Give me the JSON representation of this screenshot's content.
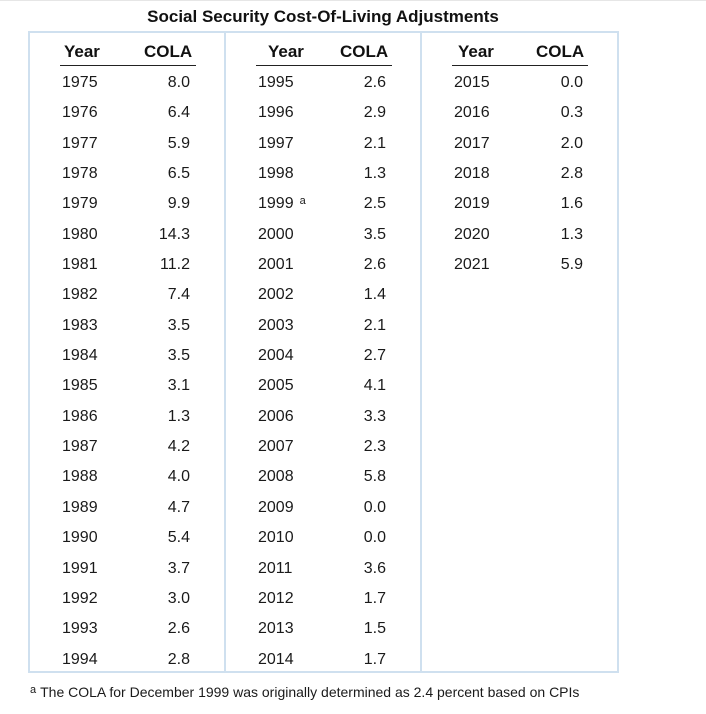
{
  "title": "Social Security Cost-Of-Living Adjustments",
  "headers": {
    "year": "Year",
    "cola": "COLA"
  },
  "columns": [
    {
      "rows": [
        {
          "year": "1975",
          "cola": "8.0"
        },
        {
          "year": "1976",
          "cola": "6.4"
        },
        {
          "year": "1977",
          "cola": "5.9"
        },
        {
          "year": "1978",
          "cola": "6.5"
        },
        {
          "year": "1979",
          "cola": "9.9"
        },
        {
          "year": "1980",
          "cola": "14.3"
        },
        {
          "year": "1981",
          "cola": "11.2"
        },
        {
          "year": "1982",
          "cola": "7.4"
        },
        {
          "year": "1983",
          "cola": "3.5"
        },
        {
          "year": "1984",
          "cola": "3.5"
        },
        {
          "year": "1985",
          "cola": "3.1"
        },
        {
          "year": "1986",
          "cola": "1.3"
        },
        {
          "year": "1987",
          "cola": "4.2"
        },
        {
          "year": "1988",
          "cola": "4.0"
        },
        {
          "year": "1989",
          "cola": "4.7"
        },
        {
          "year": "1990",
          "cola": "5.4"
        },
        {
          "year": "1991",
          "cola": "3.7"
        },
        {
          "year": "1992",
          "cola": "3.0"
        },
        {
          "year": "1993",
          "cola": "2.6"
        },
        {
          "year": "1994",
          "cola": "2.8"
        }
      ]
    },
    {
      "rows": [
        {
          "year": "1995",
          "cola": "2.6"
        },
        {
          "year": "1996",
          "cola": "2.9"
        },
        {
          "year": "1997",
          "cola": "2.1"
        },
        {
          "year": "1998",
          "cola": "1.3"
        },
        {
          "year": "1999",
          "note": "a",
          "cola": "2.5"
        },
        {
          "year": "2000",
          "cola": "3.5"
        },
        {
          "year": "2001",
          "cola": "2.6"
        },
        {
          "year": "2002",
          "cola": "1.4"
        },
        {
          "year": "2003",
          "cola": "2.1"
        },
        {
          "year": "2004",
          "cola": "2.7"
        },
        {
          "year": "2005",
          "cola": "4.1"
        },
        {
          "year": "2006",
          "cola": "3.3"
        },
        {
          "year": "2007",
          "cola": "2.3"
        },
        {
          "year": "2008",
          "cola": "5.8"
        },
        {
          "year": "2009",
          "cola": "0.0"
        },
        {
          "year": "2010",
          "cola": "0.0"
        },
        {
          "year": "2011",
          "cola": "3.6"
        },
        {
          "year": "2012",
          "cola": "1.7"
        },
        {
          "year": "2013",
          "cola": "1.5"
        },
        {
          "year": "2014",
          "cola": "1.7"
        }
      ]
    },
    {
      "rows": [
        {
          "year": "2015",
          "cola": "0.0"
        },
        {
          "year": "2016",
          "cola": "0.3"
        },
        {
          "year": "2017",
          "cola": "2.0"
        },
        {
          "year": "2018",
          "cola": "2.8"
        },
        {
          "year": "2019",
          "cola": "1.6"
        },
        {
          "year": "2020",
          "cola": "1.3"
        },
        {
          "year": "2021",
          "cola": "5.9"
        }
      ]
    }
  ],
  "footnote": {
    "marker": "a",
    "text": "The COLA for December 1999 was originally determined as 2.4 percent based on CPIs"
  }
}
